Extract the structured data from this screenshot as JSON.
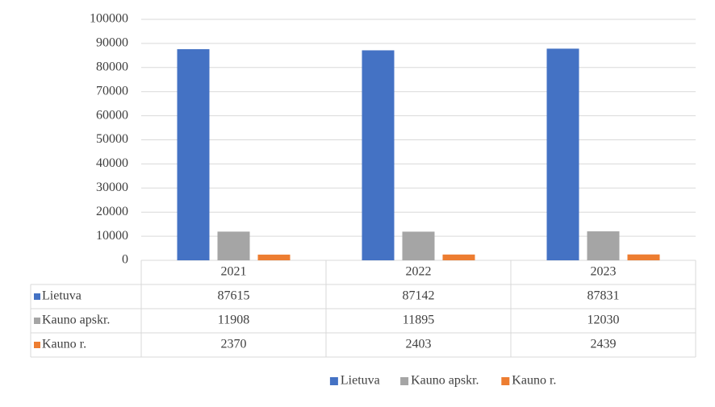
{
  "chart_data": {
    "type": "bar",
    "categories": [
      "2021",
      "2022",
      "2023"
    ],
    "series": [
      {
        "name": "Lietuva",
        "color": "#4472c4",
        "values": [
          87615,
          87142,
          87831
        ]
      },
      {
        "name": "Kauno apskr.",
        "color": "#a5a5a5",
        "values": [
          11908,
          11895,
          12030
        ]
      },
      {
        "name": "Kauno r.",
        "color": "#ed7d31",
        "values": [
          2370,
          2403,
          2439
        ]
      }
    ],
    "ylim": [
      0,
      100000
    ],
    "yticks": [
      0,
      10000,
      20000,
      30000,
      40000,
      50000,
      60000,
      70000,
      80000,
      90000,
      100000
    ],
    "grid": true,
    "legend": "bottom"
  }
}
